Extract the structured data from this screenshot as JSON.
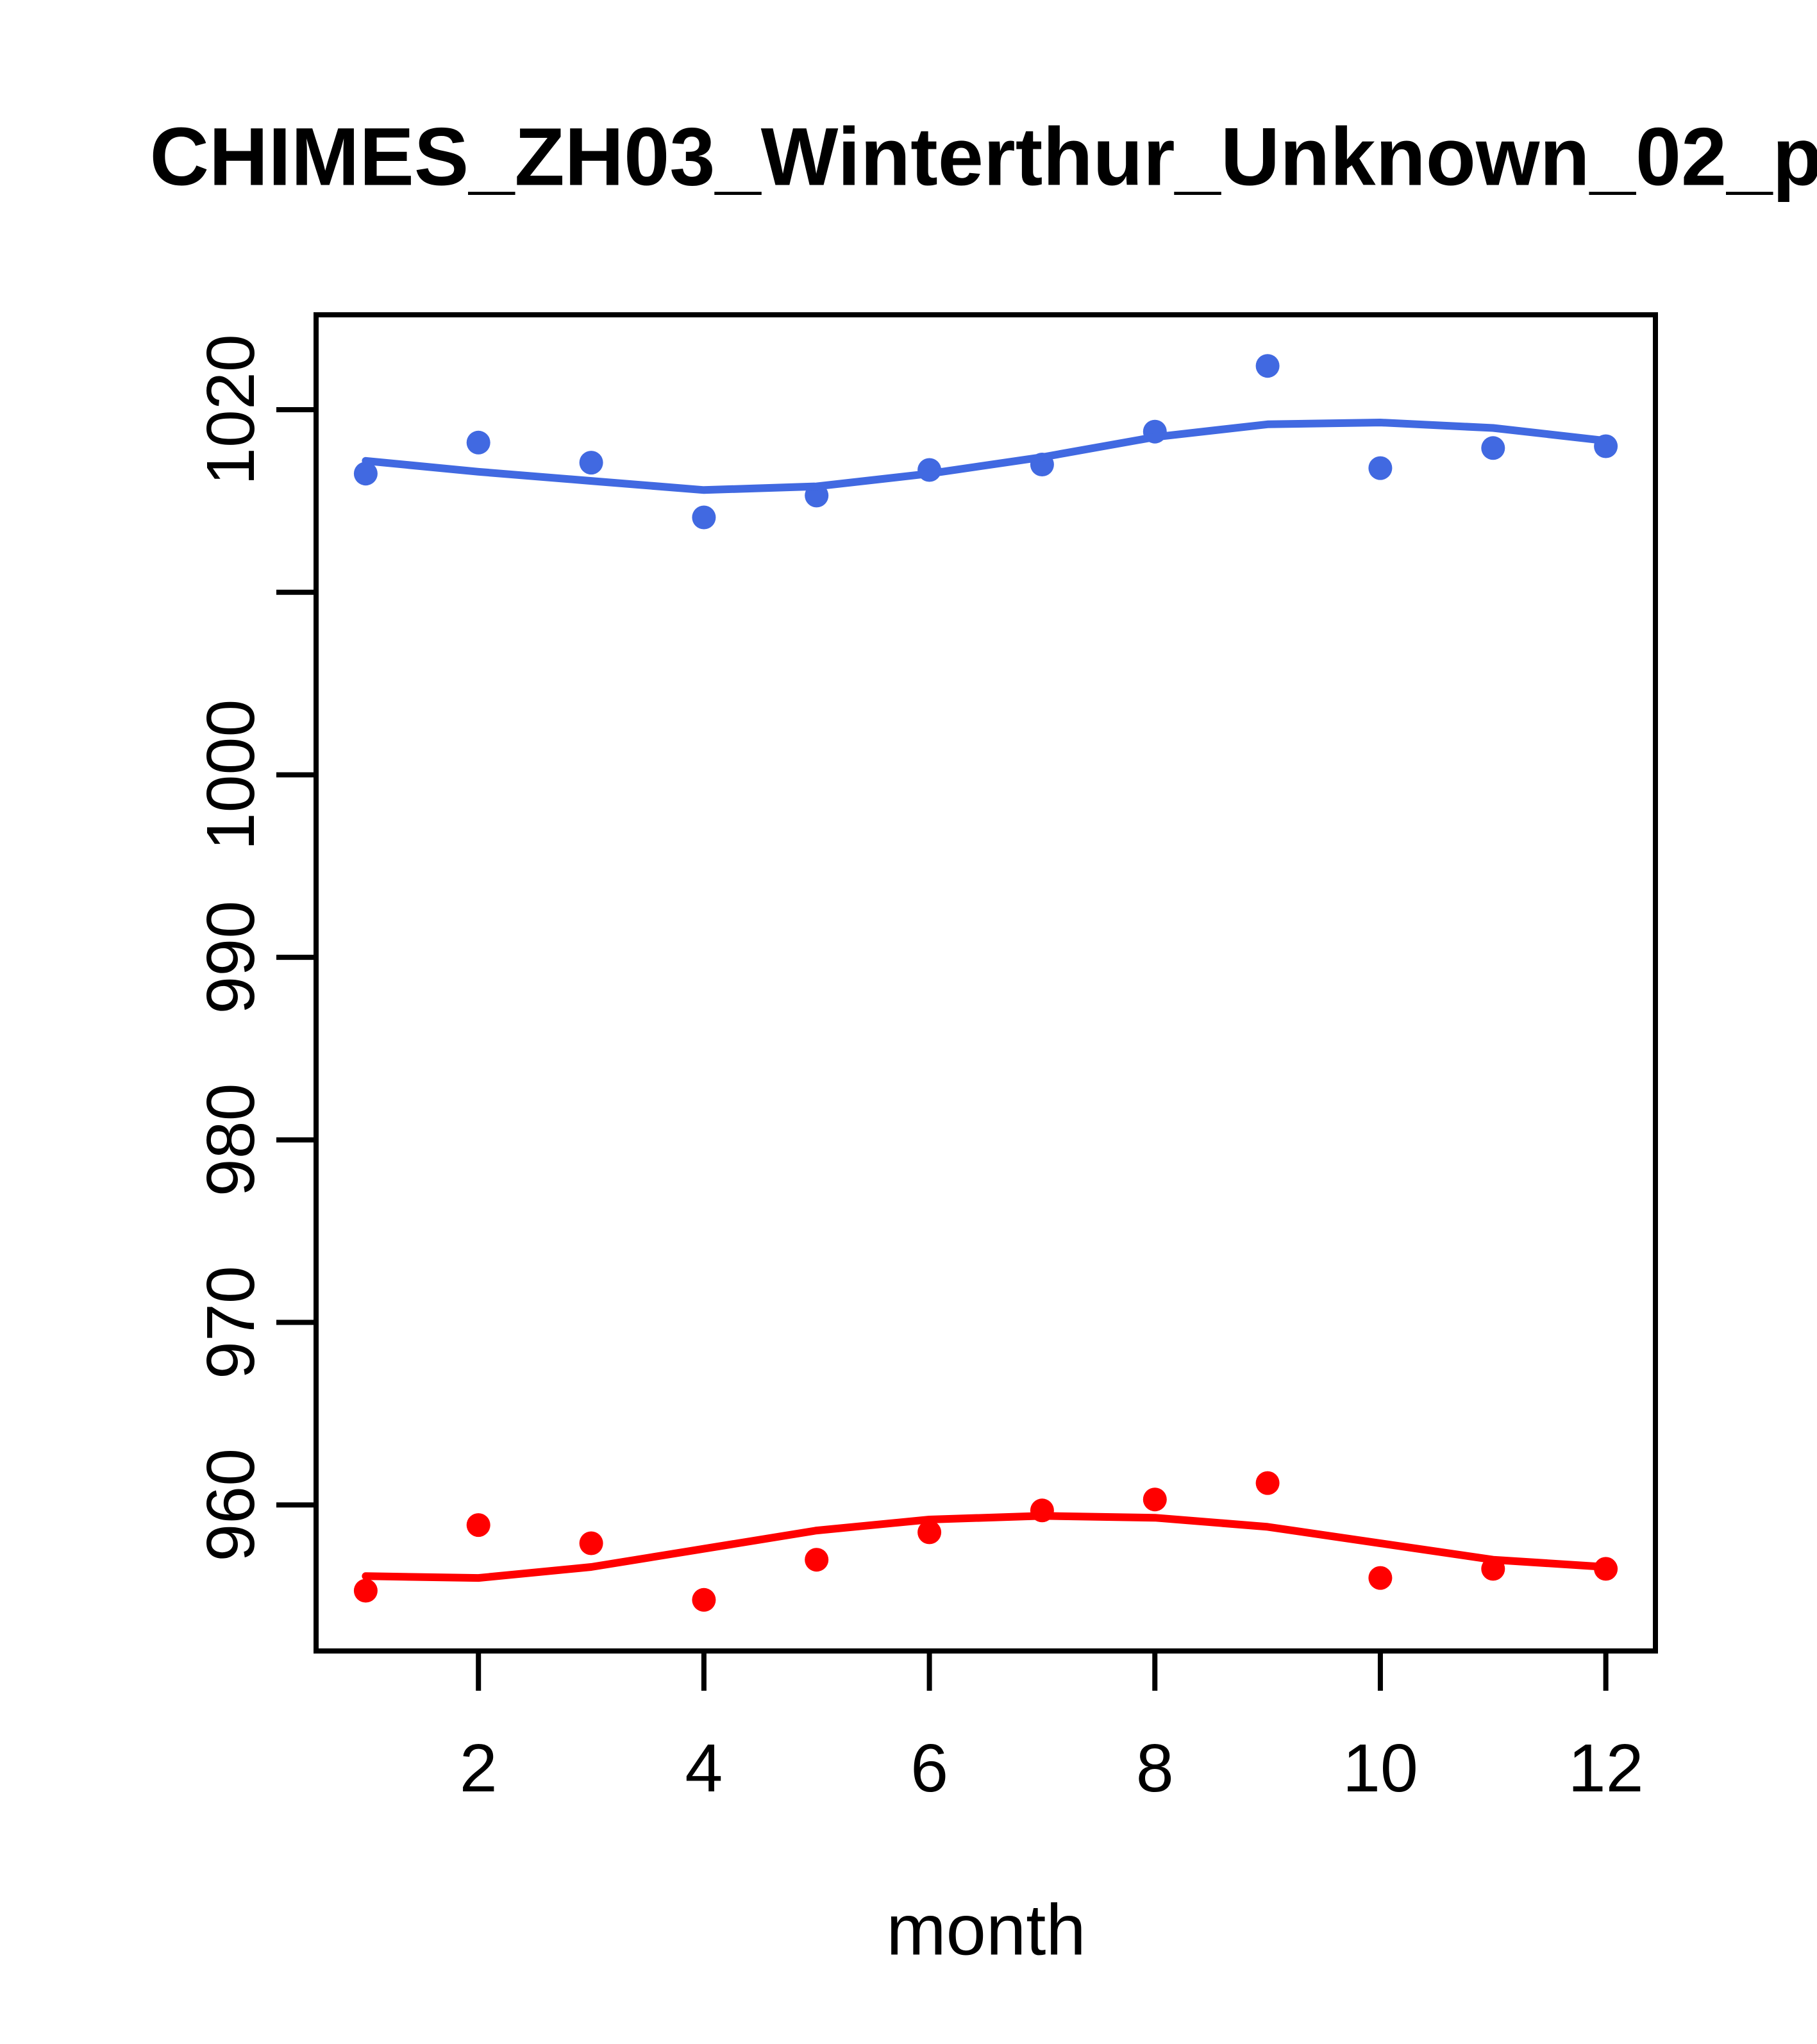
{
  "page": {
    "background": "#FFFFFF"
  },
  "chart_data": {
    "type": "scatter",
    "title": "CHIMES_ZH03_Winterthur_Unknown_02_p",
    "xlabel": "month",
    "ylabel": "",
    "grid": false,
    "legend": "none",
    "axis_color": "#000000",
    "text_color": "#000000",
    "xlim": [
      0.56,
      12.44
    ],
    "ylim": [
      952.0,
      1025.2
    ],
    "x_ticks": [
      {
        "v": 2,
        "label": "2"
      },
      {
        "v": 4,
        "label": "4"
      },
      {
        "v": 6,
        "label": "6"
      },
      {
        "v": 8,
        "label": "8"
      },
      {
        "v": 10,
        "label": "10"
      },
      {
        "v": 12,
        "label": "12"
      }
    ],
    "y_ticks": [
      {
        "v": 960,
        "label": "960"
      },
      {
        "v": 970,
        "label": "970"
      },
      {
        "v": 980,
        "label": "980"
      },
      {
        "v": 990,
        "label": "990"
      },
      {
        "v": 1000,
        "label": "1000"
      },
      {
        "v": 1010,
        "label": ""
      },
      {
        "v": 1020,
        "label": "1020"
      }
    ],
    "x": [
      1,
      2,
      3,
      4,
      5,
      6,
      7,
      8,
      9,
      10,
      11,
      12
    ],
    "series": [
      {
        "name": "upper-observations-blue",
        "draw": "points",
        "color": "#4169E1",
        "values": [
          1016.5,
          1018.2,
          1017.1,
          1014.1,
          1015.3,
          1016.7,
          1017.0,
          1018.8,
          1022.4,
          1016.8,
          1017.9,
          1018.0
        ]
      },
      {
        "name": "upper-smooth-blue",
        "draw": "line",
        "color": "#4169E1",
        "values": [
          1017.2,
          1016.6,
          1016.1,
          1015.6,
          1015.8,
          1016.5,
          1017.4,
          1018.5,
          1019.2,
          1019.3,
          1019.0,
          1018.3
        ]
      },
      {
        "name": "lower-observations-red",
        "draw": "points",
        "color": "#FF0000",
        "values": [
          955.3,
          958.9,
          957.9,
          954.8,
          957.0,
          958.5,
          959.7,
          960.3,
          961.2,
          956.0,
          956.5,
          956.5
        ]
      },
      {
        "name": "lower-smooth-red",
        "draw": "line",
        "color": "#FF0000",
        "values": [
          956.1,
          956.0,
          956.6,
          957.6,
          958.6,
          959.2,
          959.4,
          959.3,
          958.8,
          957.9,
          957.0,
          956.6
        ]
      }
    ]
  }
}
